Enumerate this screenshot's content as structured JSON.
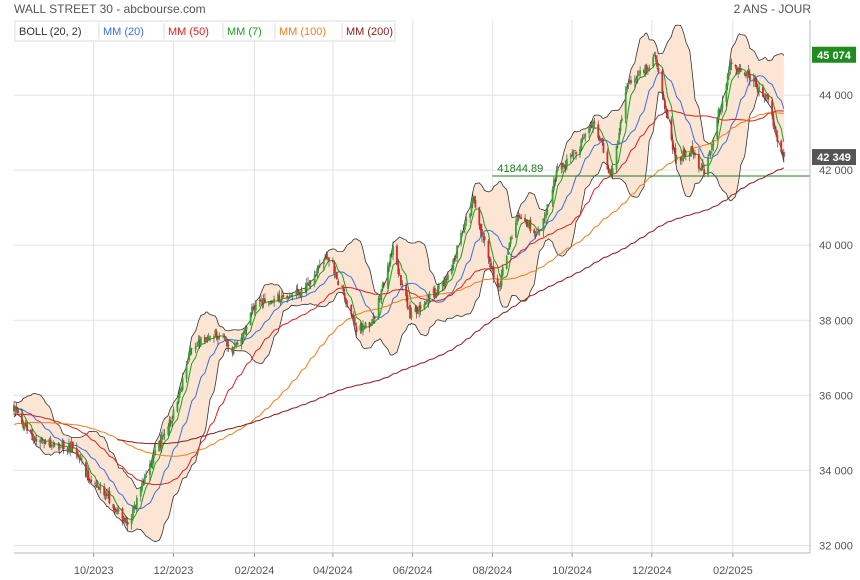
{
  "header": {
    "title": "WALL STREET 30 - abcbourse.com",
    "period": "2 ANS - JOUR"
  },
  "legend": [
    {
      "label": "BOLL (20, 2)",
      "color": "#333333"
    },
    {
      "label": "MM (20)",
      "color": "#3a6fe0"
    },
    {
      "label": "MM (50)",
      "color": "#e02020"
    },
    {
      "label": "MM (7)",
      "color": "#1f9d1f"
    },
    {
      "label": "MM (100)",
      "color": "#f07d1a"
    },
    {
      "label": "MM (200)",
      "color": "#8b1a1a"
    }
  ],
  "chart_data": {
    "type": "line",
    "instrument": "WALL STREET 30",
    "ylim": [
      31800,
      46000
    ],
    "yticks": [
      32000,
      34000,
      36000,
      38000,
      40000,
      42000,
      44000
    ],
    "ytick_labels": [
      "32 000",
      "34 000",
      "36 000",
      "38 000",
      "40 000",
      "42 000",
      "44 000"
    ],
    "xtick_labels": [
      "10/2023",
      "12/2023",
      "02/2024",
      "04/2024",
      "06/2024",
      "08/2024",
      "10/2024",
      "12/2024",
      "02/2025"
    ],
    "xtick_dates": [
      "2023-10-01",
      "2023-12-01",
      "2024-02-01",
      "2024-04-01",
      "2024-06-01",
      "2024-08-01",
      "2024-10-01",
      "2024-12-01",
      "2025-02-01"
    ],
    "xlim": [
      "2023-08-01",
      "2025-04-01"
    ],
    "price_key": [
      [
        "2023-08-01",
        35700
      ],
      [
        "2023-08-15",
        34800
      ],
      [
        "2023-08-31",
        34700
      ],
      [
        "2023-09-15",
        34600
      ],
      [
        "2023-09-30",
        33600
      ],
      [
        "2023-10-10",
        33400
      ],
      [
        "2023-10-27",
        32500
      ],
      [
        "2023-11-10",
        33900
      ],
      [
        "2023-11-30",
        35400
      ],
      [
        "2023-12-15",
        37300
      ],
      [
        "2023-12-31",
        37700
      ],
      [
        "2024-01-17",
        37200
      ],
      [
        "2024-02-01",
        38400
      ],
      [
        "2024-02-20",
        38600
      ],
      [
        "2024-03-10",
        38800
      ],
      [
        "2024-03-29",
        39700
      ],
      [
        "2024-04-19",
        37800
      ],
      [
        "2024-05-01",
        37900
      ],
      [
        "2024-05-17",
        39900
      ],
      [
        "2024-05-30",
        38100
      ],
      [
        "2024-06-14",
        38600
      ],
      [
        "2024-06-28",
        39100
      ],
      [
        "2024-07-17",
        41200
      ],
      [
        "2024-08-05",
        38800
      ],
      [
        "2024-08-20",
        40800
      ],
      [
        "2024-09-06",
        40300
      ],
      [
        "2024-09-20",
        42000
      ],
      [
        "2024-09-30",
        42300
      ],
      [
        "2024-10-18",
        43300
      ],
      [
        "2024-10-31",
        41800
      ],
      [
        "2024-11-12",
        44200
      ],
      [
        "2024-12-04",
        45000
      ],
      [
        "2024-12-19",
        42300
      ],
      [
        "2024-12-31",
        42500
      ],
      [
        "2025-01-10",
        41900
      ],
      [
        "2025-01-30",
        44800
      ],
      [
        "2025-02-14",
        44500
      ],
      [
        "2025-02-28",
        43800
      ],
      [
        "2025-03-06",
        42900
      ],
      [
        "2025-03-12",
        42349
      ]
    ],
    "series": [
      {
        "name": "MM (7)",
        "color": "#1f9d1f",
        "period": 7
      },
      {
        "name": "MM (20)",
        "color": "#3a6fe0",
        "period": 20
      },
      {
        "name": "MM (50)",
        "color": "#e02020",
        "period": 50
      },
      {
        "name": "MM (100)",
        "color": "#f07d1a",
        "period": 100
      },
      {
        "name": "MM (200)",
        "color": "#8b1a1a",
        "period": 200
      },
      {
        "name": "BOLL (20, 2)",
        "color": "#333333",
        "fill": "#fde5d3",
        "period": 20,
        "stddev": 2
      }
    ],
    "support_line": {
      "value": 41844.89,
      "label": "41844.89",
      "start": "2024-08-01",
      "color": "#1e7b1e"
    },
    "last_close": {
      "label": "42 349",
      "value": 42349,
      "color": "#555555"
    },
    "period_high": {
      "label": "45 074",
      "value": 45074,
      "color": "#1e8c1e"
    },
    "candle_up_color": "#2ea82e",
    "candle_down_color": "#d42a2a",
    "grid": true
  }
}
